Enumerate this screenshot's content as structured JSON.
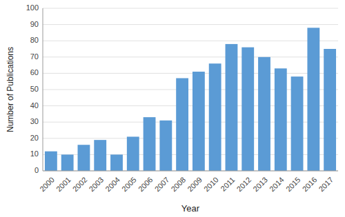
{
  "chart_data": {
    "type": "bar",
    "categories": [
      "2000",
      "2001",
      "2002",
      "2003",
      "2004",
      "2005",
      "2006",
      "2007",
      "2008",
      "2009",
      "2010",
      "2011",
      "2012",
      "2013",
      "2014",
      "2015",
      "2016",
      "2017"
    ],
    "values": [
      12,
      10,
      16,
      19,
      10,
      21,
      33,
      31,
      57,
      61,
      66,
      78,
      76,
      70,
      63,
      58,
      88,
      75
    ],
    "color": "#5B9BD5",
    "xlabel": "Year",
    "ylabel": "Number of Publications",
    "ylim": [
      0,
      100
    ],
    "yticks": [
      0,
      10,
      20,
      30,
      40,
      50,
      60,
      70,
      80,
      90,
      100
    ],
    "grid": true
  }
}
